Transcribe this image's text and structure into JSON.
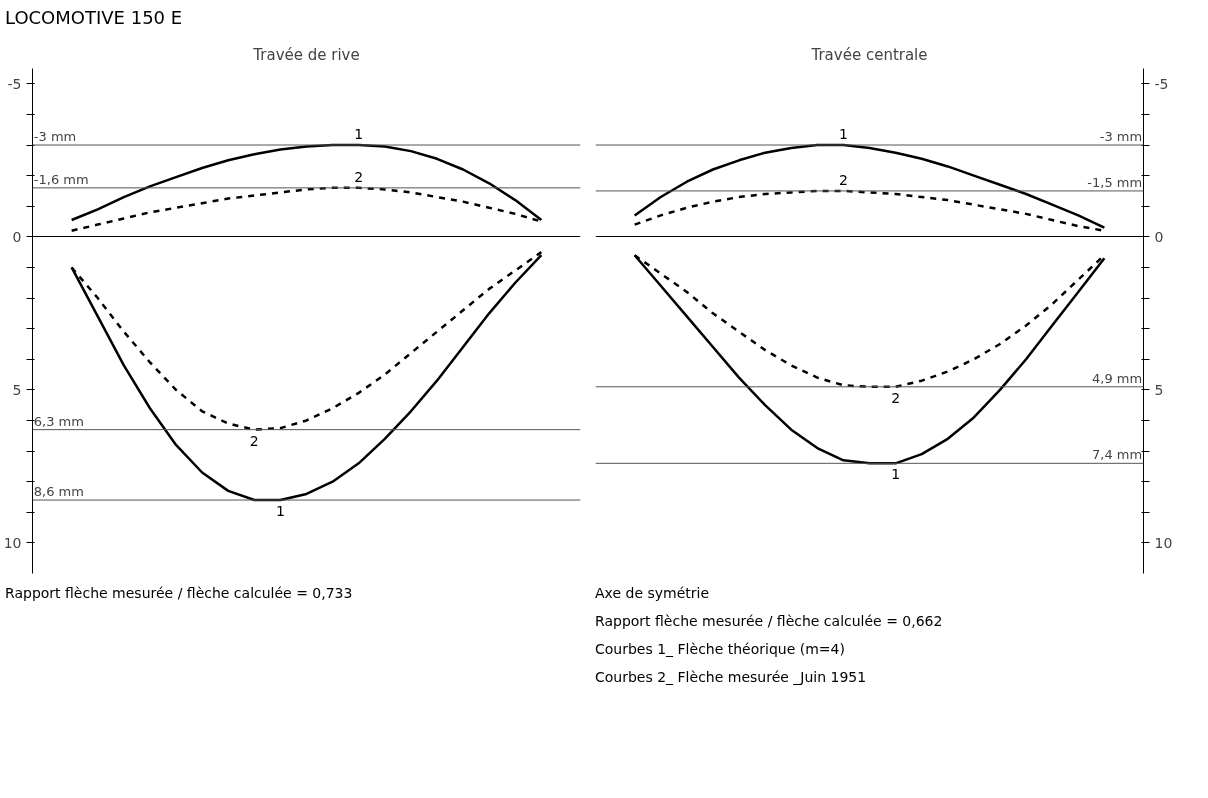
{
  "chart_data": [
    {
      "type": "line",
      "title": "LOCOMOTIVE 150 E",
      "subtitle": "Travée de rive",
      "categories": [
        null,
        null,
        null,
        null,
        null,
        null,
        null,
        null,
        null,
        null,
        null,
        null,
        null,
        null,
        null,
        null,
        null,
        null,
        null,
        null,
        null
      ],
      "series": [
        {
          "name": "1",
          "color": "#000000",
          "line_style": "solid",
          "values": [
            null,
            -0.55,
            -0.9,
            -1.3,
            -1.65,
            -1.95,
            -2.25,
            -2.5,
            -2.7,
            -2.85,
            -2.95,
            -3.0,
            -3.0,
            -2.95,
            -2.8,
            -2.55,
            -2.2,
            -1.75,
            -1.2,
            -0.55,
            null
          ]
        },
        {
          "name": "2",
          "color": "#000000",
          "line_style": "dashed",
          "values": [
            null,
            -0.2,
            -0.4,
            -0.6,
            -0.8,
            -0.95,
            -1.1,
            -1.25,
            -1.35,
            -1.45,
            -1.55,
            -1.6,
            -1.6,
            -1.55,
            -1.45,
            -1.3,
            -1.15,
            -0.95,
            -0.75,
            -0.5,
            null
          ]
        },
        {
          "name": "1",
          "color": "#000000",
          "line_style": "solid",
          "values": [
            null,
            1.0,
            2.6,
            4.2,
            5.6,
            6.8,
            7.7,
            8.3,
            8.6,
            8.6,
            8.4,
            8.0,
            7.4,
            6.6,
            5.7,
            4.7,
            3.6,
            2.5,
            1.5,
            0.6,
            null
          ]
        },
        {
          "name": "2",
          "color": "#000000",
          "line_style": "dashed",
          "values": [
            null,
            1.0,
            2.0,
            3.1,
            4.1,
            5.0,
            5.7,
            6.1,
            6.3,
            6.25,
            6.0,
            5.6,
            5.1,
            4.5,
            3.8,
            3.1,
            2.4,
            1.7,
            1.1,
            0.5,
            null
          ]
        }
      ],
      "ylim": [
        11,
        -5.5
      ],
      "yticks": [
        -5,
        {
          "value": -4,
          "label": null
        },
        {
          "value": -3,
          "label": null
        },
        {
          "value": -2,
          "label": null
        },
        {
          "value": -1,
          "label": null
        },
        0,
        {
          "value": 1,
          "label": null
        },
        {
          "value": 2,
          "label": null
        },
        {
          "value": 3,
          "label": null
        },
        {
          "value": 4,
          "label": null
        },
        5,
        {
          "value": 6,
          "label": null
        },
        {
          "value": 7,
          "label": null
        },
        {
          "value": 8,
          "label": null
        },
        {
          "value": 9,
          "label": null
        },
        10
      ],
      "ref_lines": [
        {
          "axis": "y",
          "value": -3,
          "label": "-3 mm"
        },
        {
          "axis": "y",
          "value": -1.6,
          "label": "-1,6 mm"
        },
        {
          "axis": "y",
          "value": 6.3,
          "label": "6,3 mm"
        },
        {
          "axis": "y",
          "value": 8.6,
          "label": "8,6 mm"
        }
      ],
      "tick_labels": "y",
      "grid": false,
      "annotations": [
        "Rapport flèche mesurée / flèche calculée = 0,733"
      ]
    },
    {
      "type": "line",
      "subtitle": "Travée centrale",
      "categories": [
        null,
        null,
        null,
        null,
        null,
        null,
        null,
        null,
        null,
        null,
        null,
        null,
        null,
        null,
        null,
        null,
        null,
        null,
        null,
        null,
        null
      ],
      "series": [
        {
          "name": "1",
          "color": "#000000",
          "line_style": "solid",
          "values": [
            null,
            -0.7,
            -1.3,
            -1.8,
            -2.2,
            -2.5,
            -2.75,
            -2.9,
            -3.0,
            -3.0,
            -2.9,
            -2.75,
            -2.55,
            -2.3,
            -2.0,
            -1.7,
            -1.4,
            -1.05,
            -0.7,
            -0.3,
            null
          ]
        },
        {
          "name": "2",
          "color": "#000000",
          "line_style": "dashed",
          "values": [
            null,
            -0.4,
            -0.7,
            -0.95,
            -1.15,
            -1.3,
            -1.4,
            -1.45,
            -1.5,
            -1.5,
            -1.45,
            -1.4,
            -1.3,
            -1.2,
            -1.05,
            -0.9,
            -0.75,
            -0.55,
            -0.35,
            -0.2,
            null
          ]
        },
        {
          "name": "1",
          "color": "#000000",
          "line_style": "solid",
          "values": [
            null,
            0.6,
            1.6,
            2.6,
            3.6,
            4.6,
            5.5,
            6.3,
            6.9,
            7.3,
            7.4,
            7.4,
            7.1,
            6.6,
            5.9,
            5.0,
            4.0,
            2.9,
            1.8,
            0.7,
            null
          ]
        },
        {
          "name": "2",
          "color": "#000000",
          "line_style": "dashed",
          "values": [
            null,
            0.6,
            1.2,
            1.8,
            2.5,
            3.1,
            3.7,
            4.2,
            4.6,
            4.85,
            4.9,
            4.9,
            4.7,
            4.4,
            4.0,
            3.5,
            2.9,
            2.2,
            1.4,
            0.6,
            null
          ]
        }
      ],
      "ylim": [
        11,
        -5.5
      ],
      "yticks": [
        -5,
        {
          "value": -4,
          "label": null
        },
        {
          "value": -3,
          "label": null
        },
        {
          "value": -2,
          "label": null
        },
        {
          "value": -1,
          "label": null
        },
        0,
        {
          "value": 1,
          "label": null
        },
        {
          "value": 2,
          "label": null
        },
        {
          "value": 3,
          "label": null
        },
        {
          "value": 4,
          "label": null
        },
        5,
        {
          "value": 6,
          "label": null
        },
        {
          "value": 7,
          "label": null
        },
        {
          "value": 8,
          "label": null
        },
        {
          "value": 9,
          "label": null
        },
        10
      ],
      "ref_lines": [
        {
          "axis": "y",
          "value": -3,
          "label": "-3 mm"
        },
        {
          "axis": "y",
          "value": -1.5,
          "label": "-1,5 mm"
        },
        {
          "axis": "y",
          "value": 4.9,
          "label": "4,9 mm"
        },
        {
          "axis": "y",
          "value": 7.4,
          "label": "7,4 mm"
        }
      ],
      "tick_labels": "y",
      "grid": false,
      "annotations": [
        "Axe de symétrie",
        "Rapport flèche mesurée / flèche calculée = 0,662",
        "Courbes 1_ Flèche théorique (m=4)",
        "Courbes 2_ Flèche mesurée _Juin 1951"
      ]
    }
  ]
}
